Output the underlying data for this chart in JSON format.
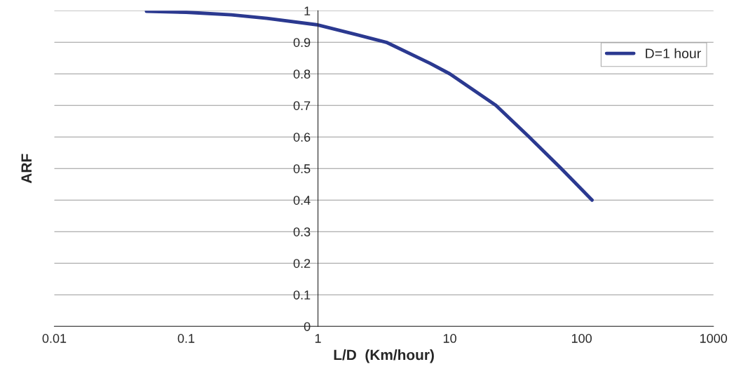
{
  "chart_data": {
    "type": "line",
    "xlabel": "L/D  (Km/hour)",
    "ylabel": "ARF",
    "x": [
      0.05,
      0.1,
      0.22,
      0.41,
      1,
      3.3,
      7.1,
      10,
      22.4,
      40,
      70,
      120
    ],
    "series": [
      {
        "name": "D=1 hour",
        "color": "#2b3990",
        "values": [
          0.998,
          0.995,
          0.987,
          0.976,
          0.955,
          0.9,
          0.833,
          0.8,
          0.7,
          0.6,
          0.5,
          0.4
        ]
      }
    ],
    "log": "x",
    "xlim": [
      0.01,
      1000
    ],
    "xticks": [
      0.01,
      0.1,
      1,
      10,
      100,
      1000
    ],
    "ylim": [
      0,
      1
    ],
    "yticks": [
      0,
      0.1,
      0.2,
      0.3,
      0.4,
      0.5,
      0.6,
      0.7,
      0.8,
      0.9,
      1
    ],
    "grid": "y",
    "legend": "top right",
    "marker": "none",
    "line_style": "solid"
  }
}
